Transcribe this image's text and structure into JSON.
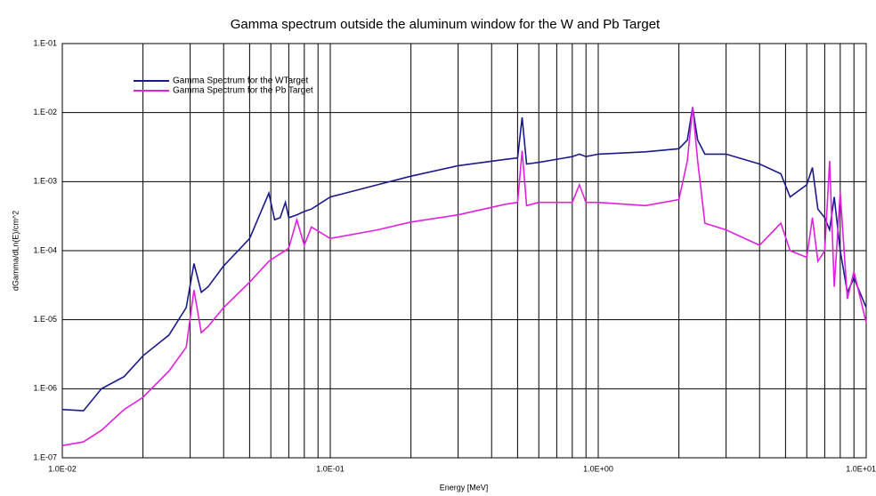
{
  "chart_data": {
    "type": "line",
    "title": "Gamma spectrum outside the aluminum window for the W and Pb Target",
    "xlabel": "Energy [MeV]",
    "ylabel": "dGamma/dLn(E)/cm^2",
    "xscale": "log",
    "yscale": "log",
    "grid": true,
    "legend": "upper left",
    "xlim": [
      0.01,
      10
    ],
    "ylim": [
      1e-07,
      0.1
    ],
    "xticks": [
      {
        "value": 0.01,
        "label": "1.0E-02"
      },
      {
        "value": 0.1,
        "label": "1.0E-01"
      },
      {
        "value": 1,
        "label": "1.0E+00"
      },
      {
        "value": 10,
        "label": "1.0E+01"
      }
    ],
    "yticks": [
      {
        "value": 1e-07,
        "label": "1.E-07"
      },
      {
        "value": 1e-06,
        "label": "1.E-06"
      },
      {
        "value": 1e-05,
        "label": "1.E-05"
      },
      {
        "value": 0.0001,
        "label": "1.E-04"
      },
      {
        "value": 0.001,
        "label": "1.E-03"
      },
      {
        "value": 0.01,
        "label": "1.E-02"
      },
      {
        "value": 0.1,
        "label": "1.E-01"
      }
    ],
    "x": [
      0.01,
      0.012,
      0.014,
      0.017,
      0.02,
      0.025,
      0.029,
      0.031,
      0.033,
      0.035,
      0.04,
      0.05,
      0.059,
      0.062,
      0.065,
      0.068,
      0.07,
      0.075,
      0.08,
      0.085,
      0.1,
      0.15,
      0.2,
      0.3,
      0.45,
      0.5,
      0.52,
      0.54,
      0.6,
      0.8,
      0.85,
      0.9,
      1.0,
      1.5,
      2.0,
      2.15,
      2.25,
      2.35,
      2.5,
      3,
      4,
      4.8,
      5.2,
      6,
      6.3,
      6.6,
      7,
      7.3,
      7.6,
      8,
      8.5,
      9,
      10
    ],
    "series": [
      {
        "name": "Gamma Spectrum for the WTarget",
        "color": "#1a1a8c",
        "values": [
          5e-07,
          4.8e-07,
          1e-06,
          1.5e-06,
          3e-06,
          6e-06,
          1.5e-05,
          6.5e-05,
          2.5e-05,
          3e-05,
          6e-05,
          0.00015,
          0.00068,
          0.00028,
          0.0003,
          0.0005,
          0.0003,
          0.00033,
          0.00037,
          0.0004,
          0.0006,
          0.0009,
          0.0012,
          0.0017,
          0.0021,
          0.0022,
          0.0085,
          0.0018,
          0.0019,
          0.0023,
          0.0025,
          0.0023,
          0.0025,
          0.0027,
          0.003,
          0.004,
          0.012,
          0.004,
          0.0025,
          0.0025,
          0.0018,
          0.0013,
          0.0006,
          0.0009,
          0.0016,
          0.0004,
          0.0003,
          0.0002,
          0.0006,
          0.0001,
          2.5e-05,
          4e-05,
          1.5e-05
        ]
      },
      {
        "name": "Gamma Spectrum for the Pb Target",
        "color": "#e020e0",
        "values": [
          1.5e-07,
          1.7e-07,
          2.5e-07,
          5e-07,
          7.5e-07,
          1.8e-06,
          4e-06,
          2.7e-05,
          6.5e-06,
          8e-06,
          1.5e-05,
          3.5e-05,
          7e-05,
          8e-05,
          9e-05,
          0.0001,
          0.00011,
          0.00028,
          0.00012,
          0.00022,
          0.00015,
          0.0002,
          0.00026,
          0.00033,
          0.00047,
          0.0005,
          0.0028,
          0.00045,
          0.0005,
          0.0005,
          0.0009,
          0.0005,
          0.0005,
          0.00045,
          0.00055,
          0.002,
          0.012,
          0.002,
          0.00025,
          0.0002,
          0.00012,
          0.00025,
          0.0001,
          8e-05,
          0.0003,
          7e-05,
          0.0001,
          0.002,
          3e-05,
          0.0007,
          2e-05,
          5e-05,
          9e-06
        ]
      }
    ]
  }
}
